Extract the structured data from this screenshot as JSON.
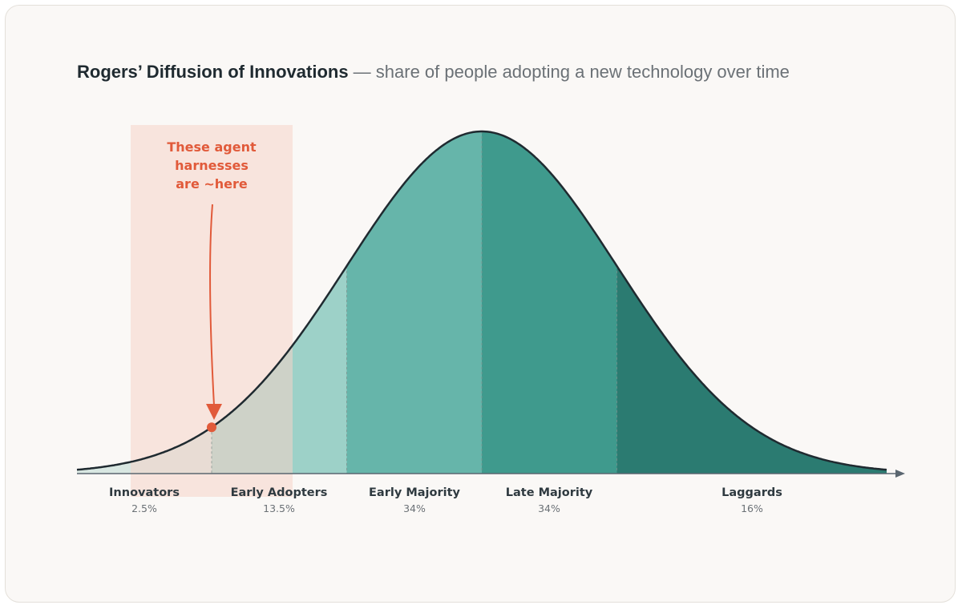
{
  "header": {
    "title": "Rogers’ Diffusion of Innovations",
    "subtitle": " — share of people adopting a new technology over time"
  },
  "diagram": {
    "type": "normal-curve-segmented",
    "segments": [
      {
        "name": "Innovators",
        "percent": "2.5%",
        "color": "#d8e7e2"
      },
      {
        "name": "Early Adopters",
        "percent": "13.5%",
        "color": "#9dd1c8"
      },
      {
        "name": "Early Majority",
        "percent": "34%",
        "color": "#66b5aa"
      },
      {
        "name": "Late Majority",
        "percent": "34%",
        "color": "#3f9a8d"
      },
      {
        "name": "Laggards",
        "percent": "16%",
        "color": "#2b7b71"
      }
    ],
    "curve_color": "#1f2a30",
    "axis_color": "#5a6670"
  },
  "callout": {
    "lines": [
      "These agent",
      "harnesses",
      "are ~here"
    ],
    "highlight_color": "#f6d3c8",
    "accent_color": "#e15a3a"
  }
}
